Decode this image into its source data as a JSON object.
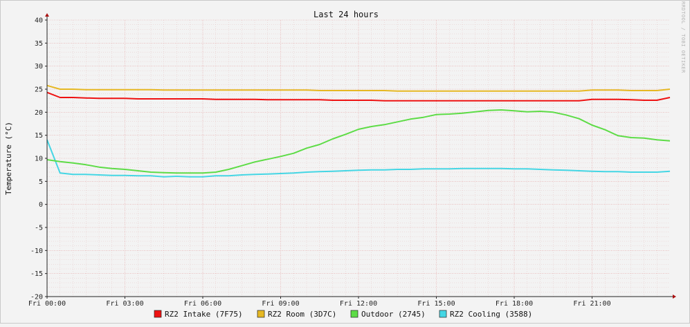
{
  "chart_data": {
    "type": "line",
    "title": "Last 24 hours",
    "ylabel": "Temperature (°C)",
    "watermark": "RRDTOOL / TOBI OETIKER",
    "ylim": [
      -20,
      40
    ],
    "yticks": [
      -20,
      -15,
      -10,
      -5,
      0,
      5,
      10,
      15,
      20,
      25,
      30,
      35,
      40
    ],
    "xlim": [
      0,
      24
    ],
    "xticks": [
      {
        "value": 0,
        "label": "Fri 00:00"
      },
      {
        "value": 3,
        "label": "Fri 03:00"
      },
      {
        "value": 6,
        "label": "Fri 06:00"
      },
      {
        "value": 9,
        "label": "Fri 09:00"
      },
      {
        "value": 12,
        "label": "Fri 12:00"
      },
      {
        "value": 15,
        "label": "Fri 15:00"
      },
      {
        "value": 18,
        "label": "Fri 18:00"
      },
      {
        "value": 21,
        "label": "Fri 21:00"
      }
    ],
    "grid": true,
    "legend_position": "bottom",
    "series": [
      {
        "name": "RZ2 Intake (7F75)",
        "color": "#ee1111",
        "x": [
          0,
          0.5,
          1,
          1.5,
          2,
          2.5,
          3,
          3.5,
          4,
          4.5,
          5,
          5.5,
          6,
          6.5,
          7,
          7.5,
          8,
          8.5,
          9,
          9.5,
          10,
          10.5,
          11,
          11.5,
          12,
          12.5,
          13,
          13.5,
          14,
          14.5,
          15,
          15.5,
          16,
          16.5,
          17,
          17.5,
          18,
          18.5,
          19,
          19.5,
          20,
          20.5,
          21,
          21.5,
          22,
          22.5,
          23,
          23.5,
          24
        ],
        "values": [
          24.3,
          23.2,
          23.2,
          23.1,
          23.0,
          23.0,
          23.0,
          22.9,
          22.9,
          22.9,
          22.9,
          22.9,
          22.9,
          22.8,
          22.8,
          22.8,
          22.8,
          22.7,
          22.7,
          22.7,
          22.7,
          22.7,
          22.6,
          22.6,
          22.6,
          22.6,
          22.5,
          22.5,
          22.5,
          22.5,
          22.5,
          22.5,
          22.5,
          22.5,
          22.5,
          22.5,
          22.5,
          22.5,
          22.5,
          22.5,
          22.5,
          22.5,
          22.8,
          22.8,
          22.8,
          22.7,
          22.6,
          22.6,
          23.2
        ]
      },
      {
        "name": "RZ2 Room (3D7C)",
        "color": "#e6b823",
        "x": [
          0,
          0.5,
          1,
          1.5,
          2,
          2.5,
          3,
          3.5,
          4,
          4.5,
          5,
          5.5,
          6,
          6.5,
          7,
          7.5,
          8,
          8.5,
          9,
          9.5,
          10,
          10.5,
          11,
          11.5,
          12,
          12.5,
          13,
          13.5,
          14,
          14.5,
          15,
          15.5,
          16,
          16.5,
          17,
          17.5,
          18,
          18.5,
          19,
          19.5,
          20,
          20.5,
          21,
          21.5,
          22,
          22.5,
          23,
          23.5,
          24
        ],
        "values": [
          25.8,
          25.0,
          25.0,
          24.9,
          24.9,
          24.9,
          24.9,
          24.9,
          24.9,
          24.8,
          24.8,
          24.8,
          24.8,
          24.8,
          24.8,
          24.8,
          24.8,
          24.8,
          24.8,
          24.8,
          24.8,
          24.7,
          24.7,
          24.7,
          24.7,
          24.7,
          24.7,
          24.6,
          24.6,
          24.6,
          24.6,
          24.6,
          24.6,
          24.6,
          24.6,
          24.6,
          24.6,
          24.6,
          24.6,
          24.6,
          24.6,
          24.6,
          24.8,
          24.8,
          24.8,
          24.7,
          24.7,
          24.7,
          25.0
        ]
      },
      {
        "name": "Outdoor (2745)",
        "color": "#5ddc46",
        "x": [
          0,
          0.5,
          1,
          1.5,
          2,
          2.5,
          3,
          3.5,
          4,
          4.5,
          5,
          5.5,
          6,
          6.5,
          7,
          7.5,
          8,
          8.5,
          9,
          9.5,
          10,
          10.5,
          11,
          11.5,
          12,
          12.5,
          13,
          13.5,
          14,
          14.5,
          15,
          15.5,
          16,
          16.5,
          17,
          17.5,
          18,
          18.5,
          19,
          19.5,
          20,
          20.5,
          21,
          21.5,
          22,
          22.5,
          23,
          23.5,
          24
        ],
        "values": [
          9.7,
          9.3,
          9.0,
          8.6,
          8.1,
          7.8,
          7.6,
          7.3,
          7.0,
          6.9,
          6.8,
          6.8,
          6.8,
          7.0,
          7.6,
          8.4,
          9.2,
          9.8,
          10.4,
          11.1,
          12.2,
          13.0,
          14.2,
          15.2,
          16.3,
          16.9,
          17.3,
          17.9,
          18.5,
          18.9,
          19.5,
          19.6,
          19.8,
          20.1,
          20.4,
          20.5,
          20.3,
          20.1,
          20.2,
          20.0,
          19.4,
          18.6,
          17.2,
          16.2,
          14.9,
          14.5,
          14.4,
          14.0,
          13.8
        ]
      },
      {
        "name": "RZ2 Cooling (3588)",
        "color": "#44d6e4",
        "x": [
          0,
          0.5,
          1,
          1.5,
          2,
          2.5,
          3,
          3.5,
          4,
          4.5,
          5,
          5.5,
          6,
          6.5,
          7,
          7.5,
          8,
          8.5,
          9,
          9.5,
          10,
          10.5,
          11,
          11.5,
          12,
          12.5,
          13,
          13.5,
          14,
          14.5,
          15,
          15.5,
          16,
          16.5,
          17,
          17.5,
          18,
          18.5,
          19,
          19.5,
          20,
          20.5,
          21,
          21.5,
          22,
          22.5,
          23,
          23.5,
          24
        ],
        "values": [
          14.0,
          6.8,
          6.5,
          6.5,
          6.4,
          6.3,
          6.3,
          6.2,
          6.2,
          6.0,
          6.1,
          6.0,
          6.0,
          6.2,
          6.2,
          6.4,
          6.5,
          6.6,
          6.7,
          6.8,
          7.0,
          7.1,
          7.2,
          7.3,
          7.4,
          7.5,
          7.5,
          7.6,
          7.6,
          7.7,
          7.7,
          7.7,
          7.8,
          7.8,
          7.8,
          7.8,
          7.7,
          7.7,
          7.6,
          7.5,
          7.4,
          7.3,
          7.2,
          7.1,
          7.1,
          7.0,
          7.0,
          7.0,
          7.2
        ]
      }
    ]
  }
}
